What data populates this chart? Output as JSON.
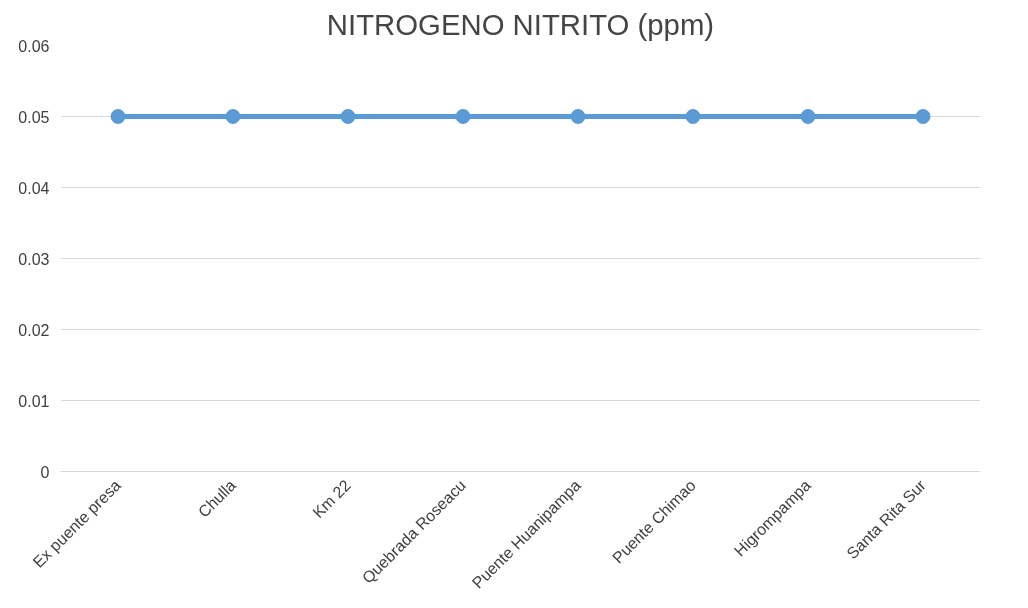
{
  "chart_data": {
    "type": "line",
    "title": "NITROGENO NITRITO (ppm)",
    "categories": [
      "Ex puente presa",
      "Chulla",
      "Km 22",
      "Quebrada Roseacu",
      "Puente Huanipampa",
      "Puente Chimao",
      "Higrompampa",
      "Santa Rita Sur"
    ],
    "series": [
      {
        "color": "#5b9bd5",
        "values": [
          0.05,
          0.05,
          0.05,
          0.05,
          0.05,
          0.05,
          0.05,
          0.05
        ]
      }
    ],
    "ylim": [
      0,
      0.06
    ],
    "yticks": [
      0,
      0.01,
      0.02,
      0.03,
      0.04,
      0.05,
      0.06
    ],
    "grid": "y",
    "marker": "circle",
    "line_style": "solid"
  }
}
